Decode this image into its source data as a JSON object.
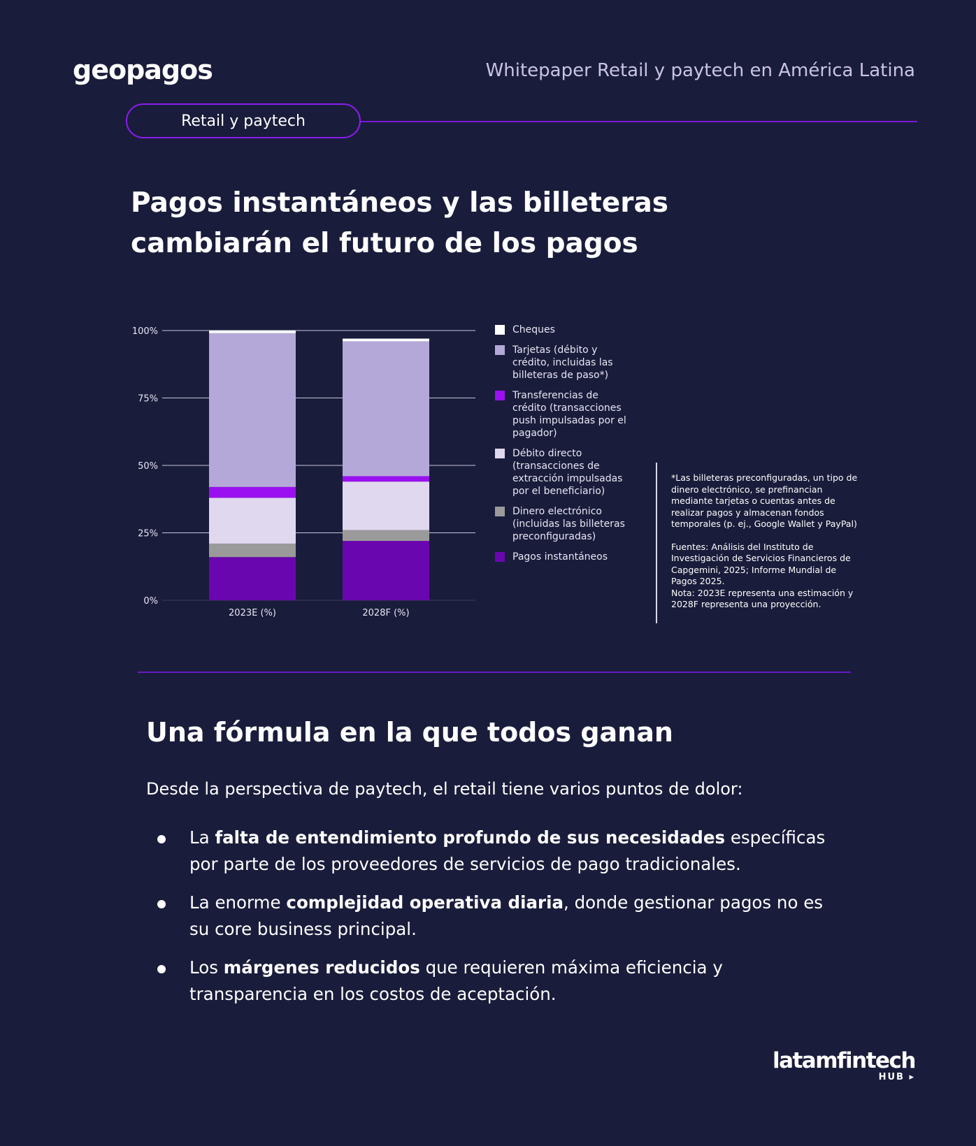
{
  "header": {
    "logo": "geopagos",
    "doc_title": "Whitepaper Retail y paytech en América Latina",
    "section_pill": "Retail y paytech"
  },
  "title_line1": "Pagos instantáneos y las billeteras",
  "title_line2": "cambiarán el futuro de los pagos",
  "colors": {
    "background": "#1a1c3b",
    "accent": "#8a1cf0",
    "cheques": "#ffffff",
    "tarjetas": "#b4a8d8",
    "transferencias": "#9b10f0",
    "debito": "#e0d8ee",
    "dinero": "#9a9a9a",
    "instantaneos": "#6a06b0"
  },
  "legend": [
    {
      "label": "Cheques",
      "color": "#ffffff"
    },
    {
      "label": " Tarjetas (débito y crédito, incluidas las billeteras de paso*)",
      "color": "#b4a8d8"
    },
    {
      "label": " Transferencias de crédito (transacciones push impulsadas por el pagador)",
      "color": "#9b10f0"
    },
    {
      "label": "Débito directo (transacciones de extracción impulsadas por el beneficiario)",
      "color": "#e0d8ee"
    },
    {
      "label": "Dinero electrónico (incluidas las billeteras preconfiguradas)",
      "color": "#9a9a9a"
    },
    {
      "label": "Pagos instantáneos",
      "color": "#6a06b0"
    }
  ],
  "chart_data": {
    "type": "bar",
    "stacked": true,
    "categories": [
      "2023E (%)",
      "2028F (%)"
    ],
    "y_ticks": [
      "0%",
      "25%",
      "50%",
      "75%",
      "100%"
    ],
    "ylim": [
      0,
      100
    ],
    "grid": true,
    "legend_position": "right",
    "series": [
      {
        "name": "Pagos instantáneos",
        "color": "#6a06b0",
        "values": [
          16,
          22
        ]
      },
      {
        "name": "Dinero electrónico (incluidas las billeteras preconfiguradas)",
        "color": "#9a9a9a",
        "values": [
          5,
          4
        ]
      },
      {
        "name": "Débito directo (transacciones de extracción impulsadas por el beneficiario)",
        "color": "#e0d8ee",
        "values": [
          17,
          18
        ]
      },
      {
        "name": "Transferencias de crédito (transacciones push impulsadas por el pagador)",
        "color": "#9b10f0",
        "values": [
          4,
          2
        ]
      },
      {
        "name": "Tarjetas (débito y crédito, incluidas las billeteras de paso*)",
        "color": "#b4a8d8",
        "values": [
          57,
          50
        ]
      },
      {
        "name": "Cheques",
        "color": "#ffffff",
        "values": [
          1,
          1
        ]
      }
    ]
  },
  "notes": {
    "footnote": "*Las billeteras preconfiguradas, un tipo de dinero electrónico, se prefinancian mediante tarjetas o cuentas antes de realizar pagos y almacenan fondos temporales (p. ej., Google Wallet y PayPal)",
    "sources": "Fuentes: Análisis del Instituto de Investigación de Servicios Financieros de Capgemini, 2025; Informe Mundial de Pagos 2025.",
    "nota": "Nota: 2023E representa una estimación y 2028F representa una proyección."
  },
  "section2": {
    "heading": "Una fórmula en la que todos ganan",
    "intro": "Desde la perspectiva de paytech, el retail  tiene varios puntos de dolor:",
    "bullets": [
      {
        "pre": "La ",
        "bold": "falta de entendimiento profundo de sus necesidades",
        "post": " específicas por parte de los proveedores de servicios de pago tradicionales."
      },
      {
        "pre": "La enorme ",
        "bold": "complejidad operativa diaria",
        "post": ", donde gestionar pagos no es su core business principal."
      },
      {
        "pre": "Los ",
        "bold": "márgenes reducidos",
        "post": " que requieren máxima eficiencia y transparencia en los costos de aceptación."
      }
    ]
  },
  "footer": {
    "logo_main": "latamfintech",
    "logo_sub": "HUB ▸"
  }
}
